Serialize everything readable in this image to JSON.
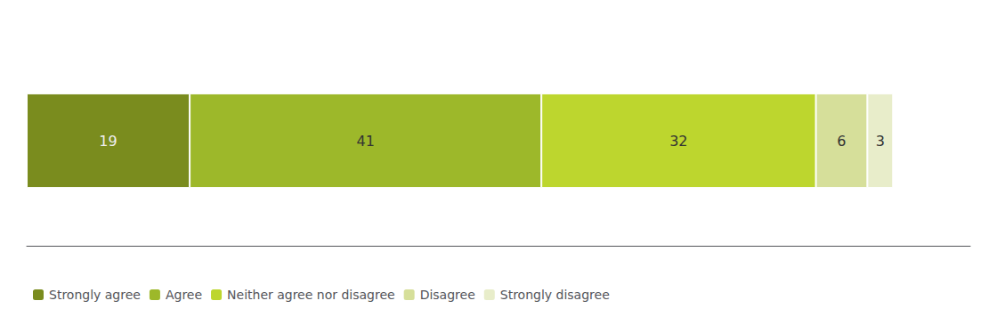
{
  "chart_data": {
    "type": "bar",
    "orientation": "horizontal",
    "stacked": true,
    "categories": [
      null
    ],
    "series": [
      {
        "name": "Strongly agree",
        "color": "#7a8c1e",
        "values": [
          19
        ]
      },
      {
        "name": "Agree",
        "color": "#9db82a",
        "values": [
          41
        ]
      },
      {
        "name": "Neither agree nor disagree",
        "color": "#bdd62e",
        "values": [
          32
        ]
      },
      {
        "name": "Disagree",
        "color": "#d6df9a",
        "values": [
          6
        ]
      },
      {
        "name": "Strongly disagree",
        "color": "#e8edca",
        "values": [
          3
        ]
      }
    ],
    "xlim": [
      0,
      110
    ],
    "data_labels": true,
    "tick_labels": false,
    "grid": false,
    "legend": "lower left"
  }
}
